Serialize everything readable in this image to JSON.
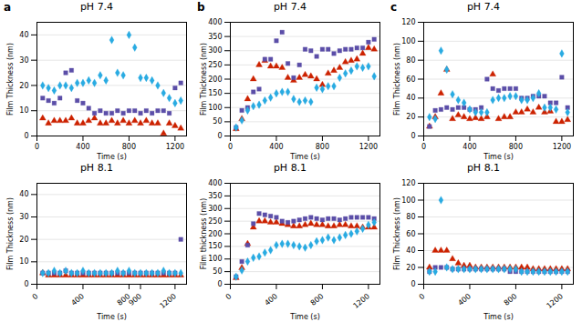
{
  "chart_data": [
    {
      "type": "scatter",
      "title": "pH 7.4",
      "annotations": [
        "a"
      ],
      "xlabel": "Time (s)",
      "ylabel": "Film Thickness (nm)",
      "xlim": [
        0,
        1300
      ],
      "xticks": [
        0,
        400,
        800,
        1200
      ],
      "ylim": [
        0,
        45
      ],
      "yticks": [
        0,
        10,
        20,
        30,
        40
      ],
      "grid": "y",
      "x": [
        50,
        100,
        150,
        200,
        250,
        300,
        350,
        400,
        450,
        500,
        550,
        600,
        650,
        700,
        750,
        800,
        850,
        900,
        950,
        1000,
        1050,
        1100,
        1150,
        1200,
        1250
      ],
      "series": [
        {
          "color": "#CC2200",
          "marker": "triangle",
          "values": [
            7,
            5,
            6,
            6,
            6,
            7,
            5,
            5,
            6,
            7,
            5,
            5,
            6,
            5,
            6,
            5,
            6,
            5,
            6,
            5,
            5,
            1,
            5,
            4,
            3
          ]
        },
        {
          "color": "#5B4EA8",
          "marker": "square",
          "values": [
            15,
            14,
            13,
            15,
            25,
            26,
            14,
            13,
            11,
            9,
            10,
            9,
            9,
            10,
            9,
            10,
            10,
            9,
            10,
            9,
            10,
            10,
            9,
            19,
            21
          ]
        },
        {
          "color": "#29ABE2",
          "marker": "diamond",
          "values": [
            20,
            19,
            18,
            20,
            20,
            19,
            21,
            21,
            22,
            21,
            24,
            22,
            38,
            25,
            24,
            40,
            35,
            23,
            23,
            22,
            20,
            17,
            15,
            13,
            14
          ]
        }
      ]
    },
    {
      "type": "scatter",
      "title": "pH 7.4",
      "annotations": [
        "b"
      ],
      "xlabel": "Time (s)",
      "ylabel": "Film Thickness (nm)",
      "xlim": [
        0,
        1300
      ],
      "xticks": [
        0,
        400,
        800,
        1200
      ],
      "ylim": [
        0,
        400
      ],
      "yticks": [
        0,
        50,
        100,
        150,
        200,
        250,
        300,
        350,
        400
      ],
      "grid": "y",
      "x": [
        50,
        100,
        150,
        200,
        250,
        300,
        350,
        400,
        450,
        500,
        550,
        600,
        650,
        700,
        750,
        800,
        850,
        900,
        950,
        1000,
        1050,
        1100,
        1150,
        1200,
        1250
      ],
      "series": [
        {
          "color": "#CC2200",
          "marker": "triangle",
          "values": [
            25,
            60,
            130,
            200,
            250,
            265,
            245,
            245,
            240,
            205,
            195,
            205,
            215,
            210,
            200,
            180,
            220,
            230,
            240,
            260,
            265,
            270,
            290,
            310,
            305
          ]
        },
        {
          "color": "#5B4EA8",
          "marker": "square",
          "values": [
            30,
            90,
            100,
            155,
            165,
            270,
            270,
            335,
            365,
            255,
            205,
            250,
            305,
            300,
            280,
            305,
            305,
            290,
            300,
            305,
            305,
            310,
            310,
            330,
            340
          ]
        },
        {
          "color": "#29ABE2",
          "marker": "diamond",
          "values": [
            30,
            55,
            90,
            105,
            110,
            125,
            135,
            150,
            155,
            155,
            130,
            120,
            125,
            120,
            170,
            165,
            175,
            175,
            205,
            220,
            230,
            245,
            240,
            245,
            210
          ]
        }
      ]
    },
    {
      "type": "scatter",
      "title": "pH 7.4",
      "annotations": [
        "c"
      ],
      "xlabel": "Time (s)",
      "ylabel": "Film Thickness (nm)",
      "xlim": [
        0,
        1300
      ],
      "xticks": [
        0,
        400,
        800,
        1200
      ],
      "ylim": [
        0,
        120
      ],
      "yticks": [
        0,
        20,
        40,
        60,
        80,
        100,
        120
      ],
      "grid": "y",
      "x": [
        50,
        100,
        150,
        200,
        250,
        300,
        350,
        400,
        450,
        500,
        550,
        600,
        650,
        700,
        750,
        800,
        850,
        900,
        950,
        1000,
        1050,
        1100,
        1150,
        1200,
        1250
      ],
      "series": [
        {
          "color": "#CC2200",
          "marker": "triangle",
          "values": [
            10,
            20,
            45,
            70,
            18,
            22,
            20,
            18,
            19,
            18,
            20,
            65,
            18,
            20,
            20,
            25,
            25,
            28,
            25,
            30,
            25,
            26,
            15,
            15,
            17
          ]
        },
        {
          "color": "#5B4EA8",
          "marker": "square",
          "values": [
            10,
            27,
            28,
            30,
            28,
            30,
            30,
            28,
            28,
            30,
            60,
            50,
            48,
            50,
            50,
            50,
            40,
            40,
            42,
            42,
            42,
            35,
            35,
            62,
            30
          ]
        },
        {
          "color": "#29ABE2",
          "marker": "diamond",
          "values": [
            20,
            18,
            90,
            70,
            44,
            38,
            35,
            28,
            25,
            25,
            25,
            38,
            40,
            40,
            42,
            42,
            38,
            38,
            40,
            45,
            30,
            30,
            28,
            87,
            25
          ]
        }
      ]
    },
    {
      "type": "scatter",
      "title": "pH 8.1",
      "xlabel": "Time (s)",
      "ylabel": "Film Thickness (nm)",
      "xlim": [
        0,
        1300
      ],
      "xticks": [
        0,
        400,
        800,
        900,
        1200
      ],
      "ylim": [
        0,
        45
      ],
      "yticks": [
        0,
        10,
        20,
        30,
        40
      ],
      "grid": "y",
      "x": [
        50,
        100,
        150,
        200,
        250,
        300,
        350,
        400,
        450,
        500,
        550,
        600,
        650,
        700,
        750,
        800,
        850,
        900,
        950,
        1000,
        1050,
        1100,
        1150,
        1200,
        1250
      ],
      "series": [
        {
          "color": "#CC2200",
          "marker": "triangle",
          "values": [
            5,
            4,
            4,
            4,
            4,
            4,
            4,
            4,
            4,
            4,
            4,
            4,
            4,
            4,
            4,
            4,
            4,
            4,
            4,
            4,
            4,
            4,
            4,
            4,
            4
          ]
        },
        {
          "color": "#5B4EA8",
          "marker": "square",
          "values": [
            5,
            5,
            5,
            5,
            6,
            5,
            5,
            5,
            5,
            5,
            5,
            5,
            5,
            5,
            5,
            5,
            5,
            5,
            5,
            5,
            5,
            5,
            5,
            5,
            20
          ]
        },
        {
          "color": "#29ABE2",
          "marker": "diamond",
          "values": [
            5,
            5,
            6,
            5,
            6,
            5,
            5,
            6,
            5,
            5,
            5,
            5,
            5,
            6,
            5,
            6,
            5,
            5,
            5,
            5,
            5,
            6,
            5,
            5,
            5
          ]
        }
      ]
    },
    {
      "type": "scatter",
      "title": "pH 8.1",
      "xlabel": "Time (s)",
      "ylabel": "Film thickness (nm)",
      "xlim": [
        0,
        1300
      ],
      "xticks": [
        0,
        400,
        800,
        1200
      ],
      "ylim": [
        0,
        400
      ],
      "yticks": [
        0,
        50,
        100,
        150,
        200,
        250,
        300,
        350,
        400
      ],
      "grid": "y",
      "x": [
        50,
        100,
        150,
        200,
        250,
        300,
        350,
        400,
        450,
        500,
        550,
        600,
        650,
        700,
        750,
        800,
        850,
        900,
        950,
        1000,
        1050,
        1100,
        1150,
        1200,
        1250
      ],
      "series": [
        {
          "color": "#CC2200",
          "marker": "triangle",
          "values": [
            25,
            65,
            160,
            225,
            250,
            250,
            245,
            245,
            240,
            235,
            230,
            230,
            235,
            240,
            235,
            235,
            230,
            230,
            235,
            235,
            230,
            230,
            225,
            225,
            225
          ]
        },
        {
          "color": "#5B4EA8",
          "marker": "square",
          "values": [
            30,
            90,
            155,
            240,
            280,
            275,
            270,
            265,
            250,
            245,
            250,
            255,
            260,
            265,
            260,
            255,
            260,
            260,
            255,
            260,
            265,
            265,
            265,
            265,
            260
          ]
        },
        {
          "color": "#29ABE2",
          "marker": "diamond",
          "values": [
            30,
            55,
            90,
            105,
            110,
            125,
            135,
            155,
            160,
            160,
            155,
            150,
            145,
            155,
            170,
            175,
            185,
            175,
            185,
            195,
            200,
            210,
            220,
            235,
            245
          ]
        }
      ]
    },
    {
      "type": "scatter",
      "title": "pH 8.1",
      "xlabel": "Time (s)",
      "ylabel": "Film Thickness (nm)",
      "xlim": [
        0,
        1300
      ],
      "xticks": [
        0,
        400,
        800,
        1200
      ],
      "ylim": [
        0,
        120
      ],
      "yticks": [
        0,
        20,
        40,
        60,
        80,
        100,
        120
      ],
      "grid": "y",
      "x": [
        50,
        100,
        150,
        200,
        250,
        300,
        350,
        400,
        450,
        500,
        550,
        600,
        650,
        700,
        750,
        800,
        850,
        900,
        950,
        1000,
        1050,
        1100,
        1150,
        1200,
        1250
      ],
      "series": [
        {
          "color": "#CC2200",
          "marker": "triangle",
          "values": [
            20,
            40,
            40,
            40,
            30,
            25,
            22,
            22,
            20,
            20,
            20,
            20,
            20,
            20,
            20,
            20,
            20,
            20,
            18,
            18,
            18,
            18,
            18,
            18,
            18
          ]
        },
        {
          "color": "#5B4EA8",
          "marker": "square",
          "values": [
            15,
            20,
            20,
            20,
            18,
            18,
            18,
            18,
            18,
            18,
            18,
            18,
            18,
            18,
            15,
            15,
            15,
            15,
            15,
            15,
            15,
            15,
            15,
            15,
            15
          ]
        },
        {
          "color": "#29ABE2",
          "marker": "diamond",
          "values": [
            15,
            15,
            100,
            20,
            18,
            18,
            18,
            18,
            18,
            18,
            18,
            18,
            18,
            18,
            18,
            18,
            15,
            15,
            15,
            15,
            15,
            15,
            15,
            15,
            15
          ]
        }
      ]
    }
  ]
}
